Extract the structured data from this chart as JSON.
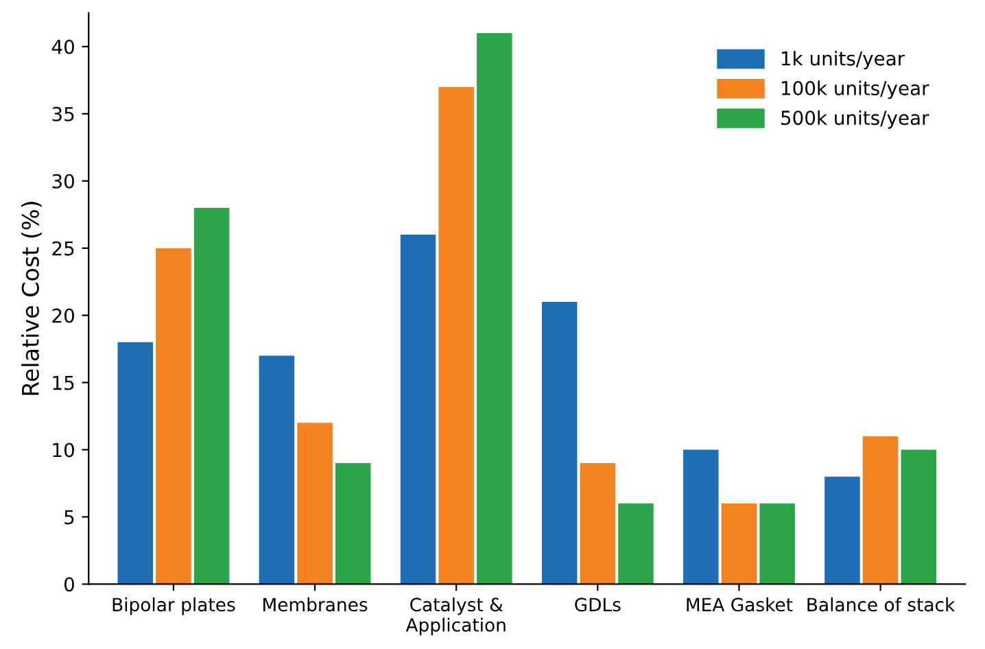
{
  "chart_data": {
    "type": "bar",
    "ylabel": "Relative Cost (%)",
    "categories": [
      "Bipolar plates",
      "Membranes",
      "Catalyst &\nApplication",
      "GDLs",
      "MEA Gasket",
      "Balance of stack"
    ],
    "series": [
      {
        "name": "1k units/year",
        "color": "#1f6db3",
        "values": [
          18,
          17,
          26,
          21,
          10,
          8
        ]
      },
      {
        "name": "100k units/year",
        "color": "#f58220",
        "values": [
          25,
          12,
          37,
          9,
          6,
          11
        ]
      },
      {
        "name": "500k units/year",
        "color": "#2ca44a",
        "values": [
          28,
          9,
          41,
          6,
          6,
          10
        ]
      }
    ],
    "ylim": [
      0,
      42.5
    ],
    "yticks": [
      0,
      5,
      10,
      15,
      20,
      25,
      30,
      35,
      40
    ],
    "grid": false,
    "legend": "top right"
  }
}
